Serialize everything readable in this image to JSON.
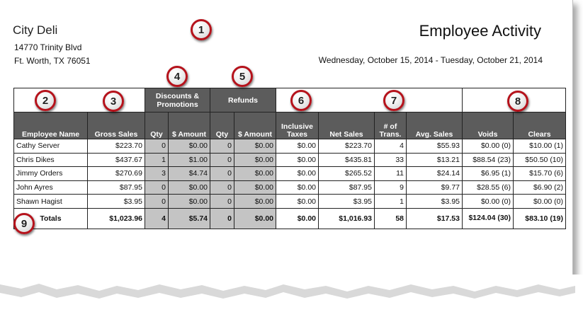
{
  "company": {
    "name": "City Deli",
    "address_line1": "14770 Trinity Blvd",
    "address_line2": "Ft. Worth, TX 76051"
  },
  "report": {
    "title": "Employee Activity",
    "date_range": "Wednesday, October 15, 2014 - Tuesday, October 21, 2014"
  },
  "callouts": [
    "1",
    "2",
    "3",
    "4",
    "5",
    "6",
    "7",
    "8",
    "9"
  ],
  "groups": {
    "discounts": "Discounts & Promotions",
    "refunds": "Refunds"
  },
  "columns": [
    "Employee Name",
    "Gross Sales",
    "Qty",
    "$ Amount",
    "Qty",
    "$ Amount",
    "Inclusive Taxes",
    "Net Sales",
    "# of Trans.",
    "Avg. Sales",
    "Voids",
    "Clears"
  ],
  "rows": [
    [
      "Cathy Server",
      "$223.70",
      "0",
      "$0.00",
      "0",
      "$0.00",
      "$0.00",
      "$223.70",
      "4",
      "$55.93",
      "$0.00 (0)",
      "$10.00 (1)"
    ],
    [
      "Chris Dikes",
      "$437.67",
      "1",
      "$1.00",
      "0",
      "$0.00",
      "$0.00",
      "$435.81",
      "33",
      "$13.21",
      "$88.54 (23)",
      "$50.50 (10)"
    ],
    [
      "Jimmy Orders",
      "$270.69",
      "3",
      "$4.74",
      "0",
      "$0.00",
      "$0.00",
      "$265.52",
      "11",
      "$24.14",
      "$6.95 (1)",
      "$15.70 (6)"
    ],
    [
      "John Ayres",
      "$87.95",
      "0",
      "$0.00",
      "0",
      "$0.00",
      "$0.00",
      "$87.95",
      "9",
      "$9.77",
      "$28.55 (6)",
      "$6.90 (2)"
    ],
    [
      "Shawn Hagist",
      "$3.95",
      "0",
      "$0.00",
      "0",
      "$0.00",
      "$0.00",
      "$3.95",
      "1",
      "$3.95",
      "$0.00 (0)",
      "$0.00 (0)"
    ]
  ],
  "totals": [
    "Totals",
    "$1,023.96",
    "4",
    "$5.74",
    "0",
    "$0.00",
    "$0.00",
    "$1,016.93",
    "58",
    "$17.53",
    "$124.04 (30)",
    "$83.10 (19)"
  ],
  "colors": {
    "header_bg": "#5c5c5c",
    "shaded_bg": "#c4c4c4",
    "badge_border": "#b5121b"
  }
}
